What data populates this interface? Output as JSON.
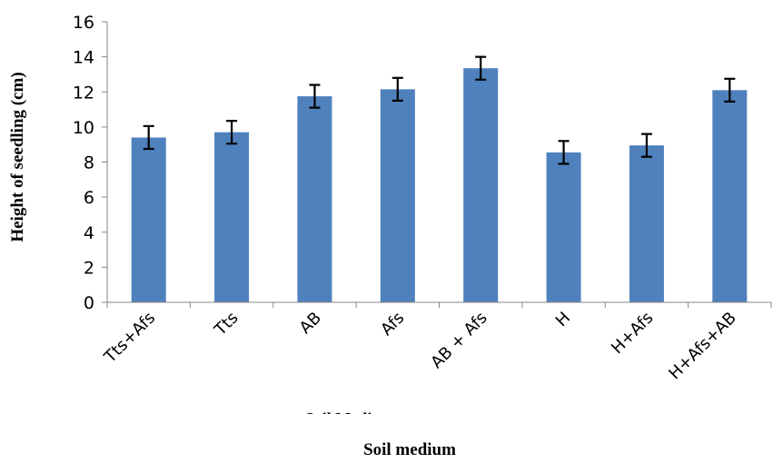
{
  "chart_data": {
    "type": "bar",
    "title": "",
    "xlabel": "Soil medium",
    "ylabel": "Height of seedling (cm)",
    "ghost_xlabel": "Soil Medium",
    "categories": [
      "Tts+Afs",
      "Tts",
      "AB",
      "Afs",
      "AB + Afs",
      "H",
      "H+Afs",
      "H+Afs+AB"
    ],
    "values": [
      9.4,
      9.7,
      11.75,
      12.15,
      13.35,
      8.55,
      8.95,
      12.1
    ],
    "errors": [
      0.65,
      0.65,
      0.65,
      0.65,
      0.65,
      0.65,
      0.65,
      0.65
    ],
    "ylim": [
      0,
      16
    ],
    "yticks": [
      0,
      2,
      4,
      6,
      8,
      10,
      12,
      14,
      16
    ],
    "grid": false,
    "legend": "none",
    "bar_color": "#4f81bd"
  }
}
